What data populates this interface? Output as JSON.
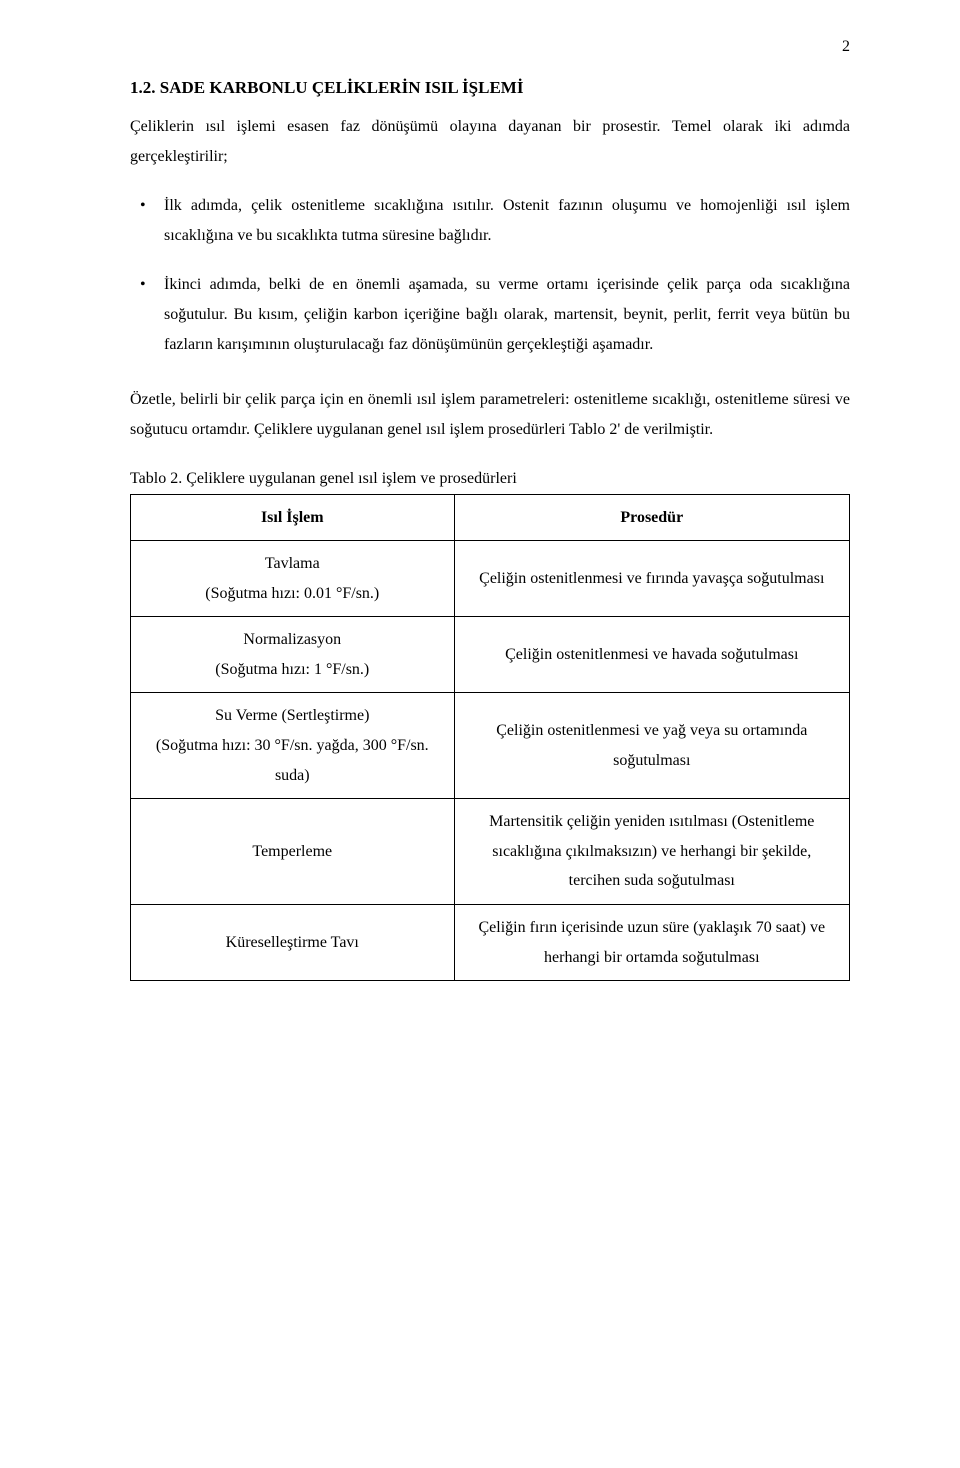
{
  "page_number": "2",
  "heading": "1.2. SADE KARBONLU ÇELİKLERİN ISIL İŞLEMİ",
  "intro_paragraph": "Çeliklerin ısıl işlemi esasen faz dönüşümü olayına dayanan bir prosestir. Temel olarak iki adımda gerçekleştirilir;",
  "bullets": [
    "İlk adımda, çelik ostenitleme sıcaklığına ısıtılır. Ostenit fazının oluşumu ve homojenliği ısıl işlem sıcaklığına ve bu sıcaklıkta tutma süresine bağlıdır.",
    "İkinci adımda, belki de en önemli aşamada, su verme ortamı içerisinde çelik parça oda sıcaklığına soğutulur. Bu kısım, çeliğin karbon içeriğine bağlı olarak, martensit, beynit, perlit, ferrit veya bütün bu fazların karışımının oluşturulacağı faz dönüşümünün gerçekleştiği aşamadır."
  ],
  "summary_paragraph": "Özetle, belirli bir çelik parça için en önemli ısıl işlem parametreleri: ostenitleme sıcaklığı, ostenitleme süresi ve soğutucu ortamdır. Çeliklere uygulanan genel ısıl işlem prosedürleri Tablo 2' de verilmiştir.",
  "table_caption": "Tablo 2. Çeliklere uygulanan genel ısıl işlem ve prosedürleri",
  "table": {
    "type": "table",
    "border_color": "#000000",
    "background_color": "#ffffff",
    "font_size": 16,
    "column_widths": [
      "45%",
      "55%"
    ],
    "columns": [
      "Isıl İşlem",
      "Prosedür"
    ],
    "rows": [
      [
        "Tavlama\n(Soğutma hızı: 0.01 °F/sn.)",
        "Çeliğin ostenitlenmesi ve fırında yavaşça soğutulması"
      ],
      [
        "Normalizasyon\n(Soğutma hızı: 1 °F/sn.)",
        "Çeliğin ostenitlenmesi ve havada soğutulması"
      ],
      [
        "Su Verme (Sertleştirme)\n(Soğutma hızı: 30 °F/sn. yağda, 300 °F/sn. suda)",
        "Çeliğin ostenitlenmesi ve yağ veya su ortamında soğutulması"
      ],
      [
        "Temperleme",
        "Martensitik çeliğin yeniden ısıtılması (Ostenitleme sıcaklığına çıkılmaksızın) ve herhangi bir şekilde, tercihen suda soğutulması"
      ],
      [
        "Küreselleştirme Tavı",
        "Çeliğin fırın içerisinde uzun süre (yaklaşık 70 saat) ve herhangi bir ortamda soğutulması"
      ]
    ]
  }
}
